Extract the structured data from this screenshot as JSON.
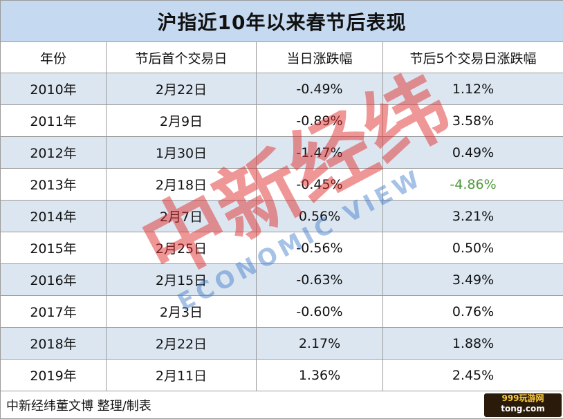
{
  "title": "沪指近10年以来春节后表现",
  "table": {
    "header": [
      "年份",
      "节后首个交易日",
      "当日涨跌幅",
      "节后5个交易日涨跌幅"
    ],
    "rows": [
      [
        "2010年",
        "2月22日",
        "-0.49%",
        "1.12%"
      ],
      [
        "2011年",
        "2月9日",
        "-0.89%",
        "3.58%"
      ],
      [
        "2012年",
        "1月30日",
        "-1.47%",
        "0.49%"
      ],
      [
        "2013年",
        "2月18日",
        "-0.45%",
        "-4.86%"
      ],
      [
        "2014年",
        "2月7日",
        "0.56%",
        "3.21%"
      ],
      [
        "2015年",
        "2月25日",
        "-0.56%",
        "0.50%"
      ],
      [
        "2016年",
        "2月15日",
        "-0.63%",
        "3.49%"
      ],
      [
        "2017年",
        "2月3日",
        "-0.60%",
        "0.76%"
      ],
      [
        "2018年",
        "2月22日",
        "2.17%",
        "1.88%"
      ],
      [
        "2019年",
        "2月11日",
        "1.36%",
        "2.45%"
      ]
    ]
  },
  "footer": "中新经纬董文博 整理/制表",
  "watermark": {
    "logo": "中新经纬",
    "subtitle": "ECONOMIC VIEW"
  },
  "badge": {
    "name": "999玩游网",
    "domain": "tong.com"
  }
}
